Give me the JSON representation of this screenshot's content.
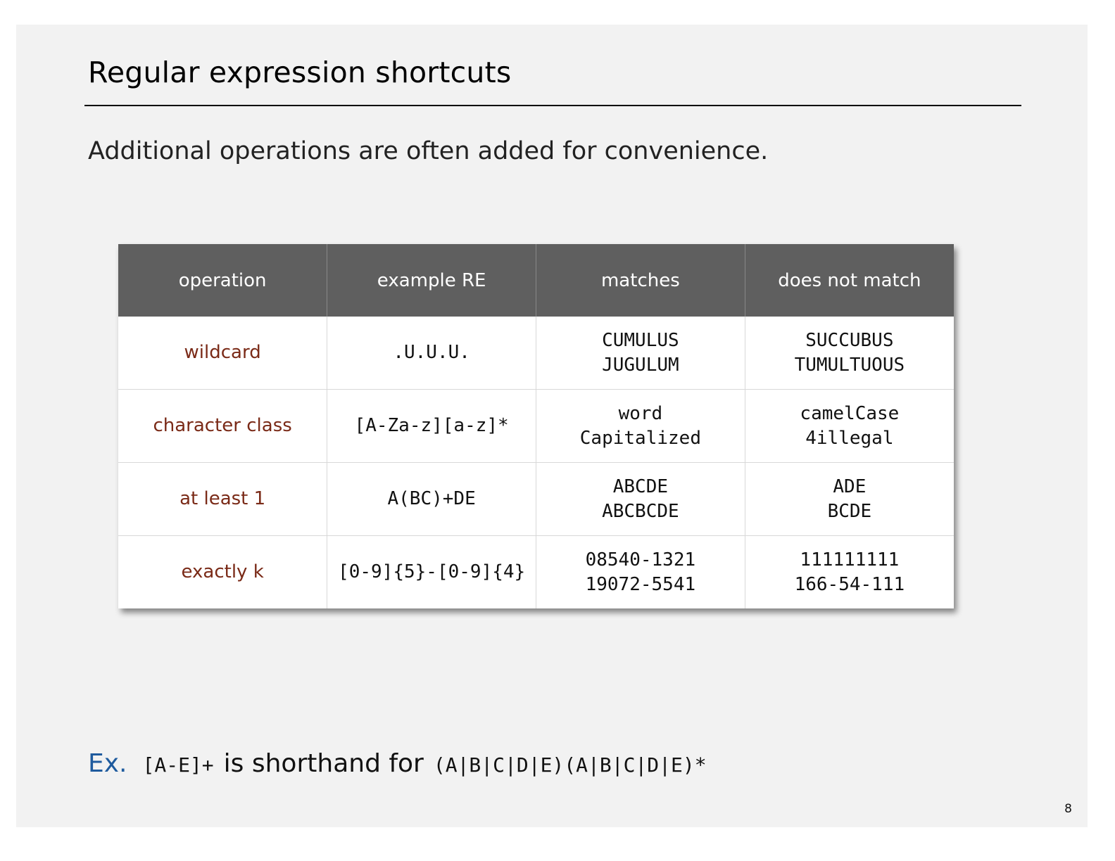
{
  "slide": {
    "title": "Regular expression shortcuts",
    "intro": "Additional operations are often added for convenience.",
    "page_number": "8"
  },
  "table": {
    "headers": [
      "operation",
      "example RE",
      "matches",
      "does not match"
    ],
    "rows": [
      {
        "operation": "wildcard",
        "example": ".U.U.U.",
        "matches": [
          "CUMULUS",
          "JUGULUM"
        ],
        "no_match": [
          "SUCCUBUS",
          "TUMULTUOUS"
        ]
      },
      {
        "operation": "character class",
        "example": "[A-Za-z][a-z]*",
        "matches": [
          "word",
          "Capitalized"
        ],
        "no_match": [
          "camelCase",
          "4illegal"
        ]
      },
      {
        "operation": "at least 1",
        "example": "A(BC)+DE",
        "matches": [
          "ABCDE",
          "ABCBCDE"
        ],
        "no_match": [
          "ADE",
          "BCDE"
        ]
      },
      {
        "operation": "exactly k",
        "example": "[0-9]{5}-[0-9]{4}",
        "matches": [
          "08540-1321",
          "19072-5541"
        ],
        "no_match": [
          "111111111",
          "166-54-111"
        ]
      }
    ]
  },
  "example": {
    "label": "Ex.",
    "regex": "[A-E]+",
    "text": "is shorthand for",
    "expansion": "(A|B|C|D|E)(A|B|C|D|E)*"
  },
  "colors": {
    "header_bg": "#5f5f5f",
    "operation_text": "#7a2a17",
    "example_label": "#1f5b9e",
    "slide_bg": "#f2f2f2"
  }
}
